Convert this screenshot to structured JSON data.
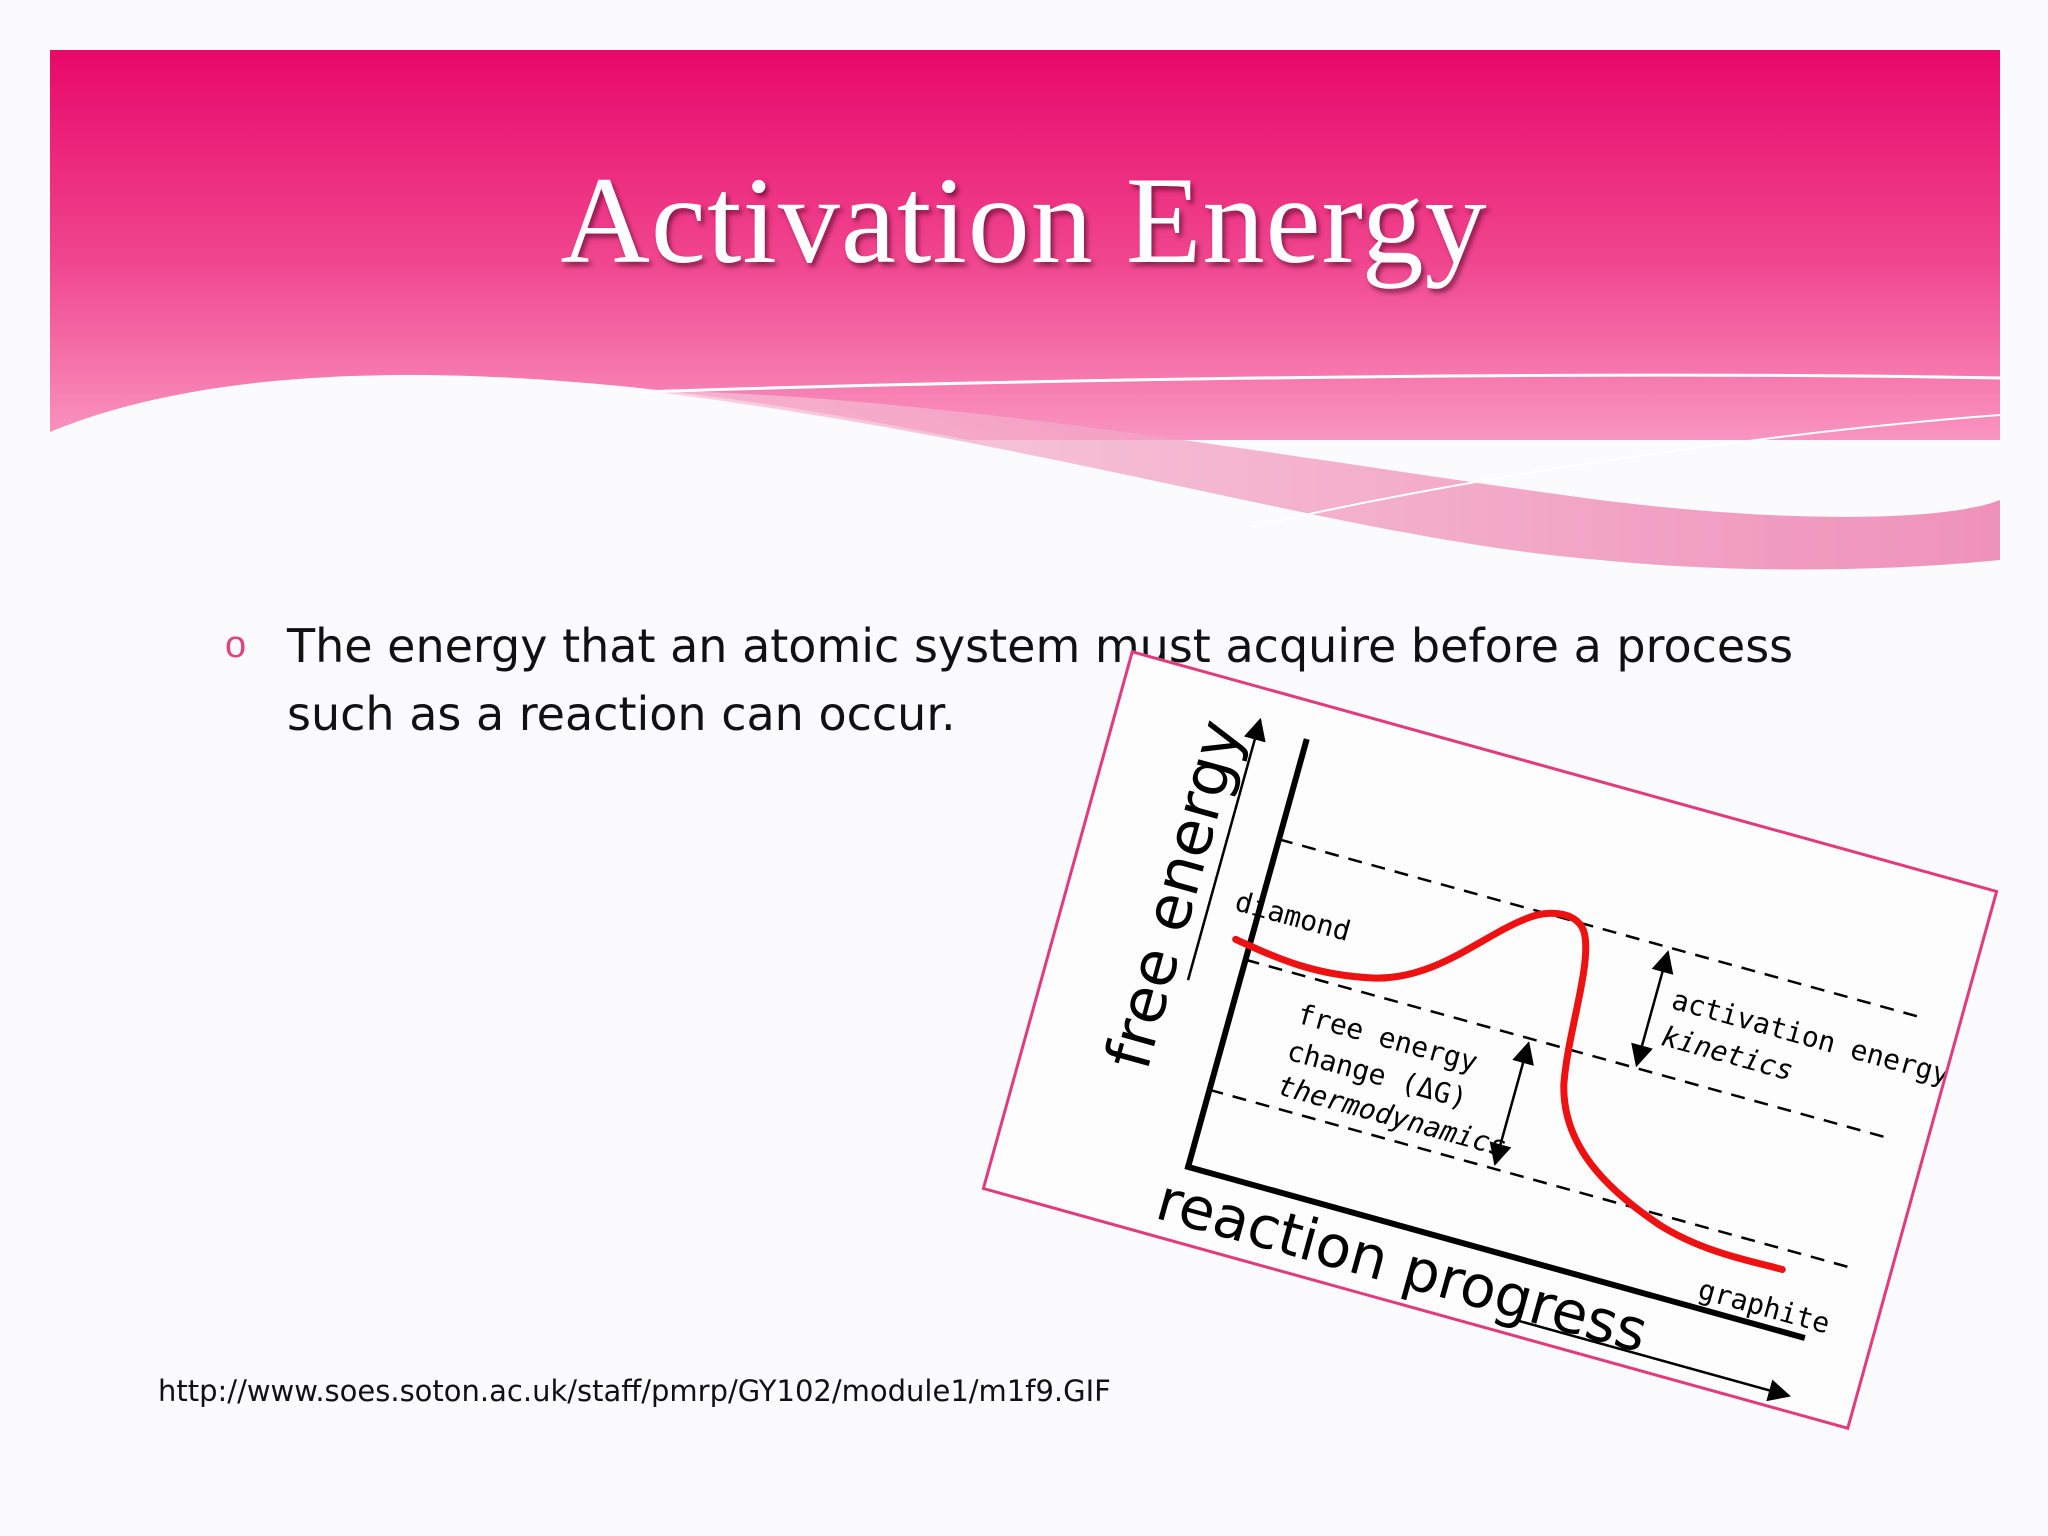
{
  "slide": {
    "title": "Activation Energy",
    "bullet": "The energy that an atomic system must acquire before a process such as a reaction can occur.",
    "bullet_marker": "o",
    "source_url": "http://www.soes.soton.ac.uk/staff/pmrp/GY102/module1/m1f9.GIF"
  },
  "diagram": {
    "y_axis_label": "free energy",
    "x_axis_label": "reaction progress",
    "initial_state": "diamond",
    "final_state": "graphite",
    "activation_label": "activation energy (E",
    "activation_subscript": "a",
    "activation_close": ")",
    "kinetics_label": "kinetics",
    "delta_g_line1": "free energy",
    "delta_g_line2": "change (ΔG)",
    "thermo_label": "thermodynamics"
  },
  "colors": {
    "header_top": "#e8086a",
    "header_bottom": "#f77bb0",
    "curve": "#ee1111",
    "frame": "#e23a7d"
  }
}
